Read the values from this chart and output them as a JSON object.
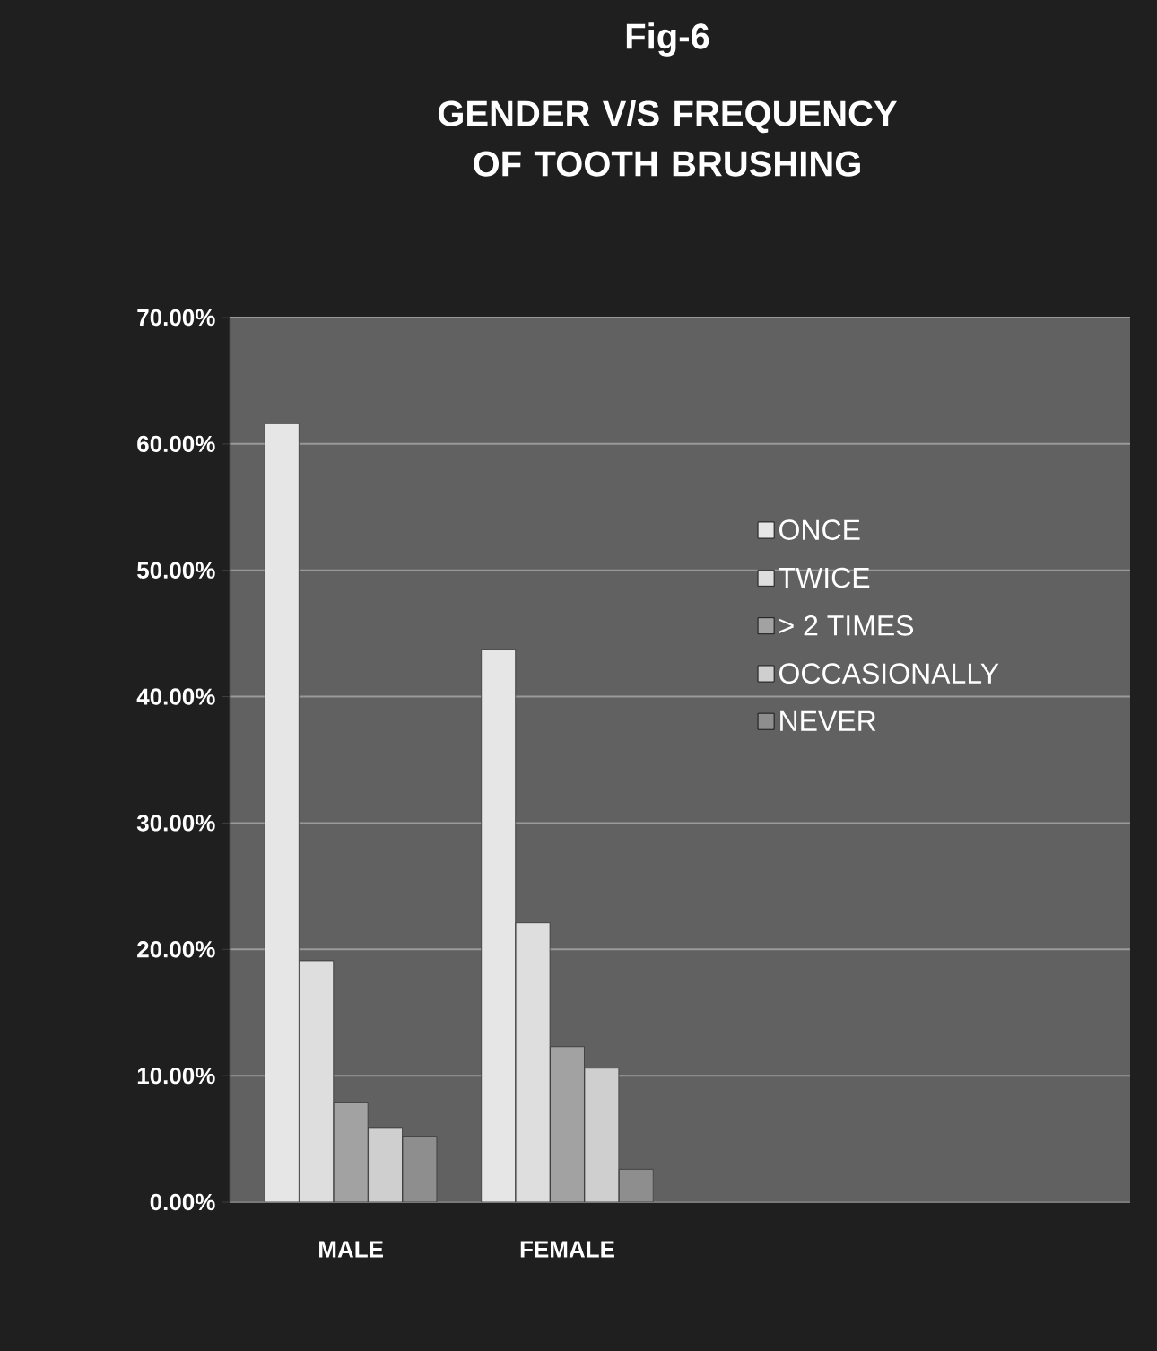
{
  "chart_data": {
    "type": "bar",
    "title": "Fig-6",
    "subtitle": "GENDER V/S FREQUENCY OF TOOTH BRUSHING",
    "categories": [
      "MALE",
      "FEMALE"
    ],
    "series": [
      {
        "name": "ONCE",
        "color": "#e6e6e6",
        "values": [
          61.6,
          43.7
        ]
      },
      {
        "name": "TWICE",
        "color": "#dedede",
        "values": [
          19.1,
          22.1
        ]
      },
      {
        "name": "> 2 TIMES",
        "color": "#a2a2a2",
        "values": [
          7.9,
          12.3
        ]
      },
      {
        "name": "OCCASIONALLY",
        "color": "#cfcfcf",
        "values": [
          5.9,
          10.6
        ]
      },
      {
        "name": "NEVER",
        "color": "#8e8e8e",
        "values": [
          5.2,
          2.6
        ]
      }
    ],
    "ylim": [
      0,
      70
    ],
    "yticks": [
      {
        "value": 0,
        "label": "0.00%"
      },
      {
        "value": 10,
        "label": "10.00%"
      },
      {
        "value": 20,
        "label": "20.00%"
      },
      {
        "value": 30,
        "label": "30.00%"
      },
      {
        "value": 40,
        "label": "40.00%"
      },
      {
        "value": 50,
        "label": "50.00%"
      },
      {
        "value": 60,
        "label": "60.00%"
      },
      {
        "value": 70,
        "label": "70.00%"
      }
    ],
    "grid": "y",
    "legend": "right"
  }
}
